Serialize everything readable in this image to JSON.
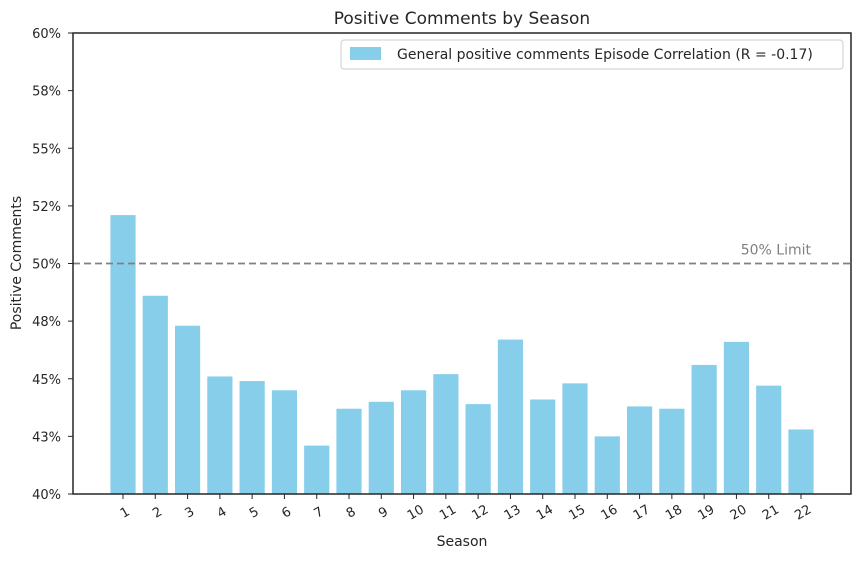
{
  "chart_data": {
    "type": "bar",
    "title": "Positive Comments by Season",
    "xlabel": "Season",
    "ylabel": "Positive Comments",
    "categories": [
      "1",
      "2",
      "3",
      "4",
      "5",
      "6",
      "7",
      "8",
      "9",
      "10",
      "11",
      "12",
      "13",
      "14",
      "15",
      "16",
      "17",
      "18",
      "19",
      "20",
      "21",
      "22"
    ],
    "series": [
      {
        "name": "General positive comments Episode Correlation (R = -0.17)",
        "values": [
          52.1,
          48.6,
          47.3,
          45.1,
          44.9,
          44.5,
          42.1,
          43.7,
          44.0,
          44.5,
          45.2,
          43.9,
          46.7,
          44.1,
          44.8,
          42.5,
          43.8,
          43.7,
          45.6,
          46.6,
          44.7,
          42.8
        ]
      }
    ],
    "ylim": [
      40,
      60
    ],
    "yticks": [
      40,
      42.5,
      45,
      47.5,
      50,
      52.5,
      55,
      57.5,
      60
    ],
    "ytick_labels": [
      "40%",
      "43%",
      "45%",
      "48%",
      "50%",
      "52%",
      "55%",
      "58%",
      "60%"
    ],
    "reference_line": {
      "value": 50,
      "label": "50% Limit",
      "style": "dashed"
    },
    "legend_position": "top-right",
    "grid": false,
    "colors": {
      "bar": "#87CEEB",
      "reference_line": "#808080",
      "axis": "#262626",
      "text": "#262626"
    }
  }
}
